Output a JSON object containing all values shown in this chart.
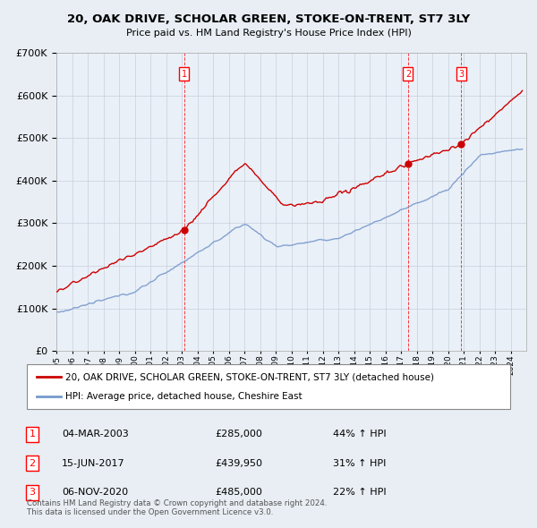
{
  "title": "20, OAK DRIVE, SCHOLAR GREEN, STOKE-ON-TRENT, ST7 3LY",
  "subtitle": "Price paid vs. HM Land Registry's House Price Index (HPI)",
  "legend_line1": "20, OAK DRIVE, SCHOLAR GREEN, STOKE-ON-TRENT, ST7 3LY (detached house)",
  "legend_line2": "HPI: Average price, detached house, Cheshire East",
  "transactions": [
    {
      "num": 1,
      "date": "04-MAR-2003",
      "year": 2003.17,
      "price": 285000,
      "pct": "44% ↑ HPI"
    },
    {
      "num": 2,
      "date": "15-JUN-2017",
      "year": 2017.45,
      "price": 439950,
      "pct": "31% ↑ HPI"
    },
    {
      "num": 3,
      "date": "06-NOV-2020",
      "year": 2020.84,
      "price": 485000,
      "pct": "22% ↑ HPI"
    }
  ],
  "footer_line1": "Contains HM Land Registry data © Crown copyright and database right 2024.",
  "footer_line2": "This data is licensed under the Open Government Licence v3.0.",
  "background_color": "#e8eef4",
  "plot_bg": "#eaf0f8",
  "red_color": "#cc0000",
  "blue_color": "#7799cc",
  "ylim": [
    0,
    700000
  ],
  "xlim_start": 1995.0,
  "xlim_end": 2025.0
}
